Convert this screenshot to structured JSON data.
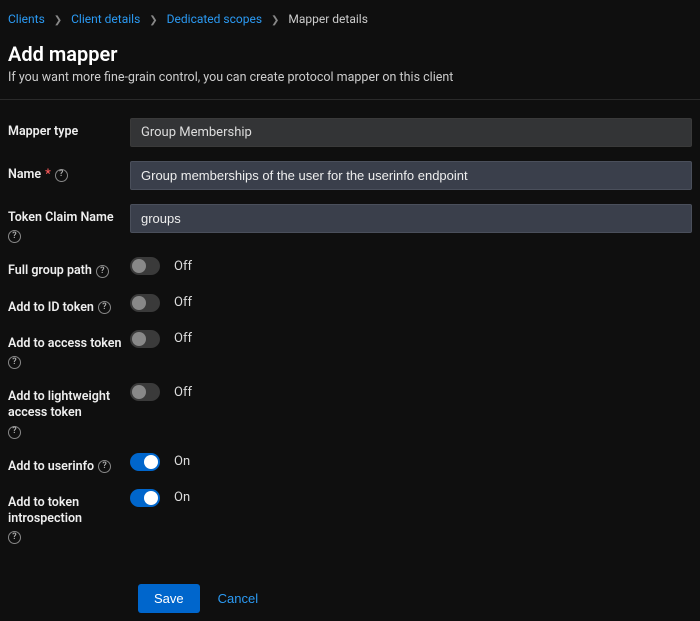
{
  "breadcrumb": {
    "items": [
      {
        "label": "Clients",
        "link": true
      },
      {
        "label": "Client details",
        "link": true
      },
      {
        "label": "Dedicated scopes",
        "link": true
      },
      {
        "label": "Mapper details",
        "link": false
      }
    ]
  },
  "header": {
    "title": "Add mapper",
    "subtitle": "If you want more fine-grain control, you can create protocol mapper on this client"
  },
  "form": {
    "mapper_type": {
      "label": "Mapper type",
      "value": "Group Membership"
    },
    "name": {
      "label": "Name",
      "required": true,
      "value": "Group memberships of the user for the userinfo endpoint"
    },
    "token_claim": {
      "label": "Token Claim Name",
      "value": "groups"
    },
    "full_group_path": {
      "label": "Full group path",
      "on": false
    },
    "add_id_token": {
      "label": "Add to ID token",
      "on": false
    },
    "add_access_token": {
      "label": "Add to access token",
      "on": false
    },
    "add_lightweight": {
      "label": "Add to lightweight access token",
      "on": false
    },
    "add_userinfo": {
      "label": "Add to userinfo",
      "on": true
    },
    "add_introspection": {
      "label": "Add to token introspection",
      "on": true
    },
    "on_label": "On",
    "off_label": "Off"
  },
  "actions": {
    "save": "Save",
    "cancel": "Cancel"
  }
}
